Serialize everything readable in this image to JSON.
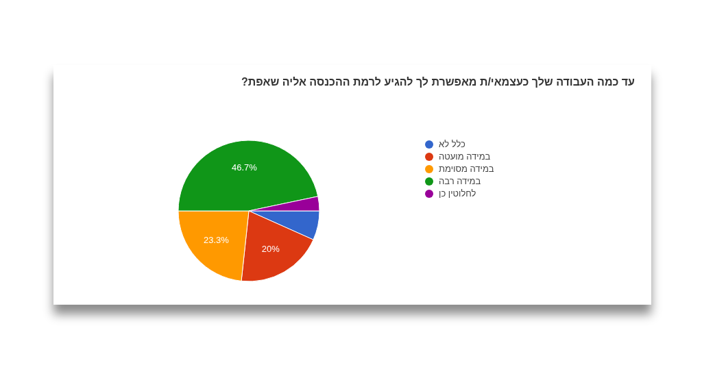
{
  "chart_data": {
    "type": "pie",
    "title": "עד כמה העבודה שלך כעצמאי/ת מאפשרת לך להגיע לרמת ההכנסה אליה שאפת?",
    "categories": [
      "כלל לא",
      "במידה מועטה",
      "במידה מסוימת",
      "במידה רבה",
      "לחלוטין כן"
    ],
    "values": [
      6.7,
      20,
      23.3,
      46.7,
      3.3
    ],
    "colors": [
      "#3366cc",
      "#dc3912",
      "#ff9900",
      "#109618",
      "#990099"
    ],
    "value_labels": [
      null,
      "20%",
      "23.3%",
      "46.7%",
      null
    ],
    "legend": "right"
  }
}
